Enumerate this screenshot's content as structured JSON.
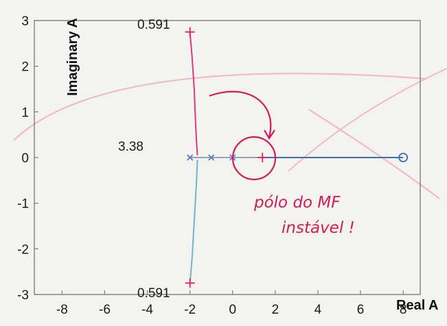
{
  "chart_data": {
    "type": "scatter",
    "title": "",
    "xlabel": "Real A",
    "ylabel": "Imaginary A",
    "xlim": [
      -9.3,
      8.8
    ],
    "ylim": [
      -3,
      3
    ],
    "xticks": [
      -8,
      -6,
      -4,
      -2,
      0,
      2,
      4,
      6,
      8
    ],
    "yticks": [
      3,
      2,
      1,
      0,
      -1,
      -2,
      -3
    ],
    "grid": false,
    "series": [
      {
        "type": "line",
        "color": "#e03a78",
        "x": [
          -2.0,
          -1.9,
          -1.8,
          -1.75,
          -1.7,
          -1.65
        ],
        "y": [
          2.75,
          2.2,
          1.5,
          0.9,
          0.4,
          0.05
        ]
      },
      {
        "type": "line",
        "color": "#6fb6c8",
        "x": [
          -1.65,
          -1.7,
          -1.8,
          -1.9,
          -2.0
        ],
        "y": [
          -0.05,
          -0.6,
          -1.4,
          -2.2,
          -2.75
        ]
      },
      {
        "type": "line",
        "color": "#3f6cb8",
        "x": [
          0.3,
          2.5,
          5.0,
          8.0
        ],
        "y": [
          0,
          0,
          0,
          0
        ]
      },
      {
        "type": "line",
        "color": "#9aa0b4",
        "x": [
          -2.0,
          -1.0,
          0.0,
          1.4
        ],
        "y": [
          0,
          0,
          0,
          0
        ]
      },
      {
        "type": "markers",
        "marker": "x",
        "color": "#5a7ab8",
        "x": [
          -2.0,
          -1.0,
          0.0
        ],
        "y": [
          0,
          0,
          0
        ]
      },
      {
        "type": "markers",
        "marker": "+",
        "color": "#e0245e",
        "x": [
          -2.0,
          -2.0,
          1.4
        ],
        "y": [
          2.75,
          -2.75,
          0
        ]
      },
      {
        "type": "markers",
        "marker": "o",
        "color": "#3f6cb8",
        "x": [
          8.0
        ],
        "y": [
          0
        ]
      }
    ],
    "data_labels": [
      {
        "text": "0.591",
        "x": -2.0,
        "y": 2.9
      },
      {
        "text": "0.591",
        "x": -2.0,
        "y": -3.0
      },
      {
        "text": "3.38",
        "x": -3.6,
        "y": 0.2
      }
    ],
    "annotations": [
      {
        "text": "pólo do MF",
        "line": 1
      },
      {
        "text": "instável !",
        "line": 2
      }
    ]
  }
}
